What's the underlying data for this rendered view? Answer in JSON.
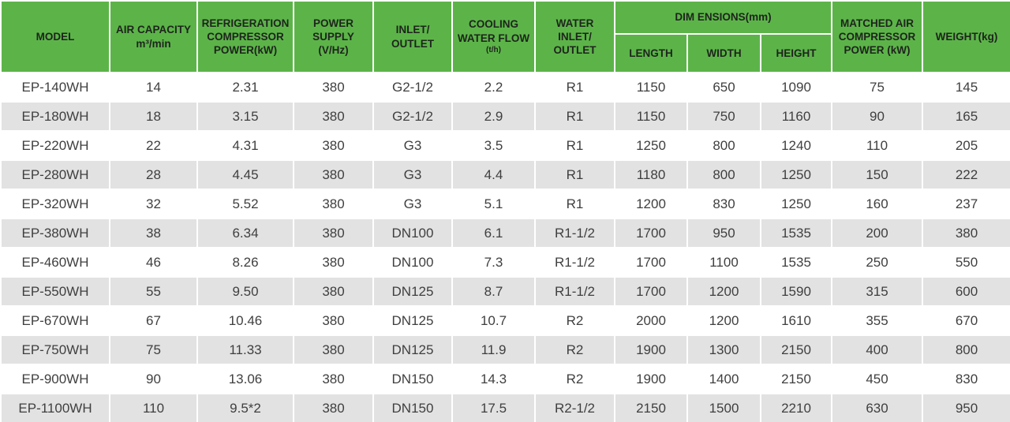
{
  "colors": {
    "header_bg": "#5cb449",
    "header_text": "#1e241c",
    "stripe_bg": "#e2e2e2",
    "body_text": "#3f3f3f",
    "grid_lines": "#ffffff"
  },
  "table": {
    "column_ids": [
      "model",
      "air_capacity",
      "refrigeration_compressor_power",
      "power_supply",
      "inlet_outlet",
      "cooling_water_flow",
      "water_inlet_outlet",
      "length",
      "width",
      "height",
      "matched_air_compressor_power",
      "weight"
    ],
    "header": {
      "model": "MODEL",
      "air_capacity": "AIR CAPACITY\nm³/min",
      "refrigeration_compressor_power": "REFRIGERATION\nCOMPRESSOR\nPOWER(kW)",
      "power_supply": "POWER\nSUPPLY\n(V/Hz)",
      "inlet_outlet": "INLET/\nOUTLET",
      "cooling_water_flow_main": "COOLING\nWATER FLOW",
      "cooling_water_flow_sub": "(t/h)",
      "water_inlet_outlet": "WATER\nINLET/\nOUTLET",
      "dimensions_group": "DIM ENSIONS(mm)",
      "length": "LENGTH",
      "width": "WIDTH",
      "height": "HEIGHT",
      "matched_air_compressor_power": "MATCHED AIR\nCOMPRESSOR\nPOWER (kW)",
      "weight": "WEIGHT(kg)"
    },
    "rows": [
      [
        "EP-140WH",
        "14",
        "2.31",
        "380",
        "G2-1/2",
        "2.2",
        "R1",
        "1150",
        "650",
        "1090",
        "75",
        "145"
      ],
      [
        "EP-180WH",
        "18",
        "3.15",
        "380",
        "G2-1/2",
        "2.9",
        "R1",
        "1150",
        "750",
        "1160",
        "90",
        "165"
      ],
      [
        "EP-220WH",
        "22",
        "4.31",
        "380",
        "G3",
        "3.5",
        "R1",
        "1250",
        "800",
        "1240",
        "110",
        "205"
      ],
      [
        "EP-280WH",
        "28",
        "4.45",
        "380",
        "G3",
        "4.4",
        "R1",
        "1180",
        "800",
        "1250",
        "150",
        "222"
      ],
      [
        "EP-320WH",
        "32",
        "5.52",
        "380",
        "G3",
        "5.1",
        "R1",
        "1200",
        "830",
        "1250",
        "160",
        "237"
      ],
      [
        "EP-380WH",
        "38",
        "6.34",
        "380",
        "DN100",
        "6.1",
        "R1-1/2",
        "1700",
        "950",
        "1535",
        "200",
        "380"
      ],
      [
        "EP-460WH",
        "46",
        "8.26",
        "380",
        "DN100",
        "7.3",
        "R1-1/2",
        "1700",
        "1100",
        "1535",
        "250",
        "550"
      ],
      [
        "EP-550WH",
        "55",
        "9.50",
        "380",
        "DN125",
        "8.7",
        "R1-1/2",
        "1700",
        "1200",
        "1590",
        "315",
        "600"
      ],
      [
        "EP-670WH",
        "67",
        "10.46",
        "380",
        "DN125",
        "10.7",
        "R2",
        "2000",
        "1200",
        "1610",
        "355",
        "670"
      ],
      [
        "EP-750WH",
        "75",
        "11.33",
        "380",
        "DN125",
        "11.9",
        "R2",
        "1900",
        "1300",
        "2150",
        "400",
        "800"
      ],
      [
        "EP-900WH",
        "90",
        "13.06",
        "380",
        "DN150",
        "14.3",
        "R2",
        "1900",
        "1400",
        "2150",
        "450",
        "830"
      ],
      [
        "EP-1100WH",
        "110",
        "9.5*2",
        "380",
        "DN150",
        "17.5",
        "R2-1/2",
        "2150",
        "1500",
        "2210",
        "630",
        "950"
      ]
    ]
  }
}
